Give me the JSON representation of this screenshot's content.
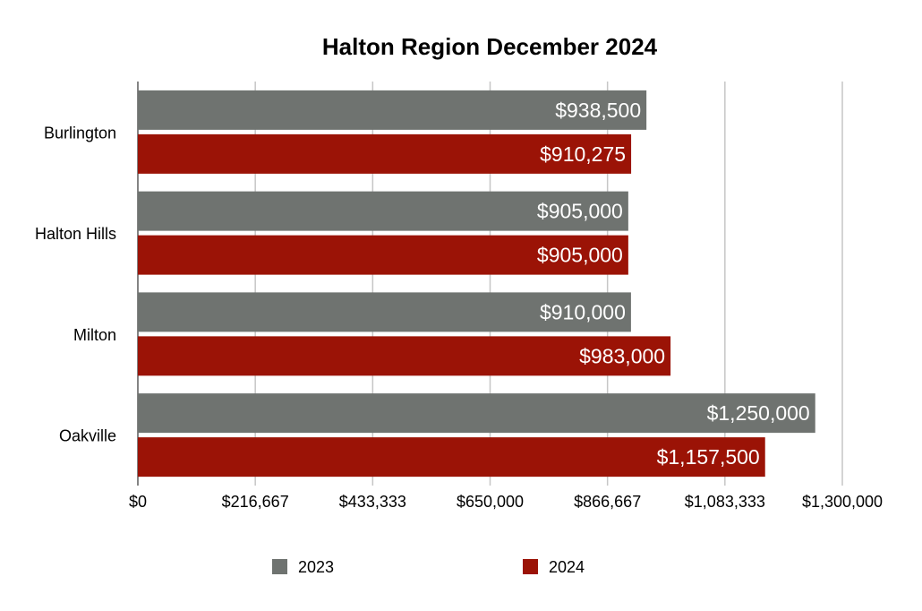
{
  "chart_data": {
    "type": "bar",
    "orientation": "horizontal",
    "title": "Halton Region December 2024",
    "categories": [
      "Burlington",
      "Halton Hills",
      "Milton",
      "Oakville"
    ],
    "series": [
      {
        "name": "2023",
        "color": "#6f7370",
        "values": [
          938500,
          905000,
          910000,
          1250000
        ],
        "labels": [
          "$938,500",
          "$905,000",
          "$910,000",
          "$1,250,000"
        ]
      },
      {
        "name": "2024",
        "color": "#9b1306",
        "values": [
          910275,
          905000,
          983000,
          1157500
        ],
        "labels": [
          "$910,275",
          "$905,000",
          "$983,000",
          "$1,157,500"
        ]
      }
    ],
    "xlim": [
      0,
      1300000
    ],
    "xticks": [
      0,
      216667,
      433333,
      650000,
      866667,
      1083333,
      1300000
    ],
    "xtick_labels": [
      "$0",
      "$216,667",
      "$433,333",
      "$650,000",
      "$866,667",
      "$1,083,333",
      "$1,300,000"
    ],
    "grid": true,
    "legend_position": "bottom"
  }
}
